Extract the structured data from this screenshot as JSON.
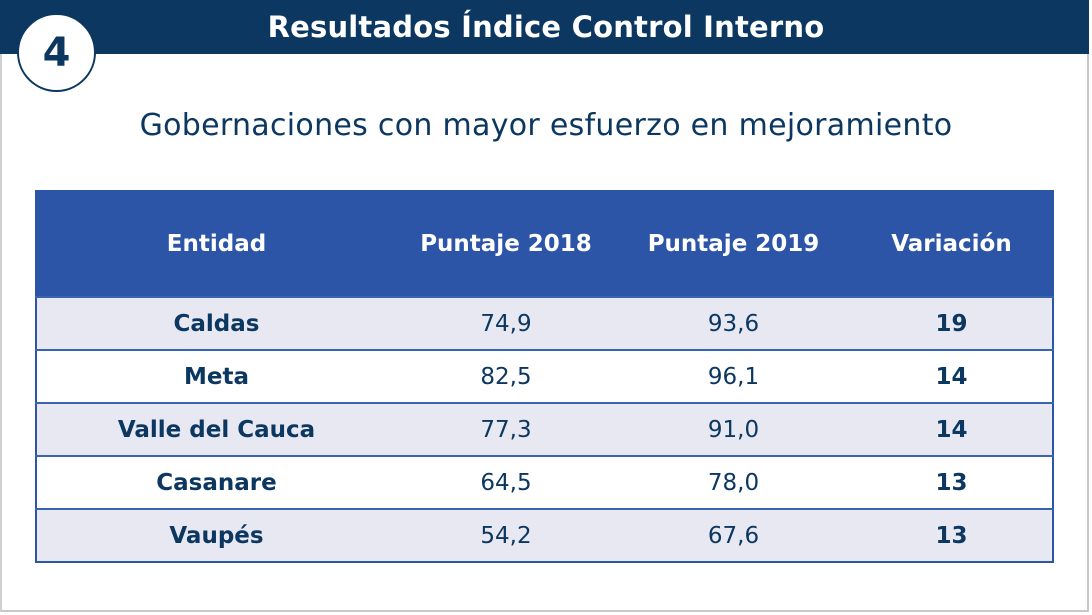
{
  "header": {
    "title": "Resultados Índice Control Interno",
    "section_number": "4"
  },
  "subtitle": "Gobernaciones con mayor esfuerzo en mejoramiento",
  "colors": {
    "header_bg": "#0b3761",
    "table_header_bg": "#2c55a8",
    "row_alt_bg": "#e7e8f2",
    "text": "#0b3761"
  },
  "table": {
    "columns": [
      "Entidad",
      "Puntaje 2018",
      "Puntaje 2019",
      "Variación"
    ],
    "rows": [
      {
        "entidad": "Caldas",
        "p2018": "74,9",
        "p2019": "93,6",
        "variacion": "19"
      },
      {
        "entidad": "Meta",
        "p2018": "82,5",
        "p2019": "96,1",
        "variacion": "14"
      },
      {
        "entidad": "Valle del Cauca",
        "p2018": "77,3",
        "p2019": "91,0",
        "variacion": "14"
      },
      {
        "entidad": "Casanare",
        "p2018": "64,5",
        "p2019": "78,0",
        "variacion": "13"
      },
      {
        "entidad": "Vaupés",
        "p2018": "54,2",
        "p2019": "67,6",
        "variacion": "13"
      }
    ]
  }
}
